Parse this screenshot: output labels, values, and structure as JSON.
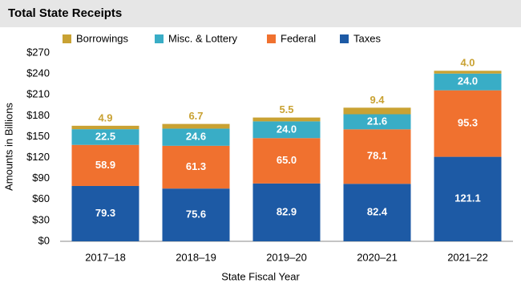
{
  "chart_data": {
    "type": "stacked_bar",
    "title": "Total State Receipts",
    "x_label": "State Fiscal Year",
    "y_label": "Amounts in Billions",
    "categories": [
      "2017–18",
      "2018–19",
      "2019–20",
      "2020–21",
      "2021–22"
    ],
    "series": [
      {
        "name": "Taxes",
        "color": "#1d5aa5",
        "values": [
          79.3,
          75.6,
          82.9,
          82.4,
          121.1
        ]
      },
      {
        "name": "Federal",
        "color": "#f0712f",
        "values": [
          58.9,
          61.3,
          65.0,
          78.1,
          95.3
        ],
        "value_labels": [
          "58.9",
          "61.3",
          "65.0",
          "78.1",
          "95.3"
        ]
      },
      {
        "name": "Misc. & Lottery",
        "color": "#39adc6",
        "values": [
          22.5,
          24.6,
          24.0,
          21.6,
          24.0
        ],
        "value_labels": [
          "22.5",
          "24.6",
          "24.0",
          "21.6",
          "24.0"
        ]
      },
      {
        "name": "Borrowings",
        "color": "#c9a233",
        "values": [
          4.9,
          6.7,
          5.5,
          9.4,
          4.0
        ],
        "value_labels": [
          "4.9",
          "6.7",
          "5.5",
          "9.4",
          "4.0"
        ]
      }
    ],
    "ylim": [
      0,
      270
    ],
    "yticks": [
      {
        "value": 0,
        "label": "$0"
      },
      {
        "value": 30,
        "label": "$30"
      },
      {
        "value": 60,
        "label": "$60"
      },
      {
        "value": 90,
        "label": "$90"
      },
      {
        "value": 120,
        "label": "$120"
      },
      {
        "value": 150,
        "label": "$150"
      },
      {
        "value": 180,
        "label": "$180"
      },
      {
        "value": 210,
        "label": "$210"
      },
      {
        "value": 240,
        "label": "$240"
      },
      {
        "value": 270,
        "label": "$270"
      }
    ],
    "grid": false
  }
}
